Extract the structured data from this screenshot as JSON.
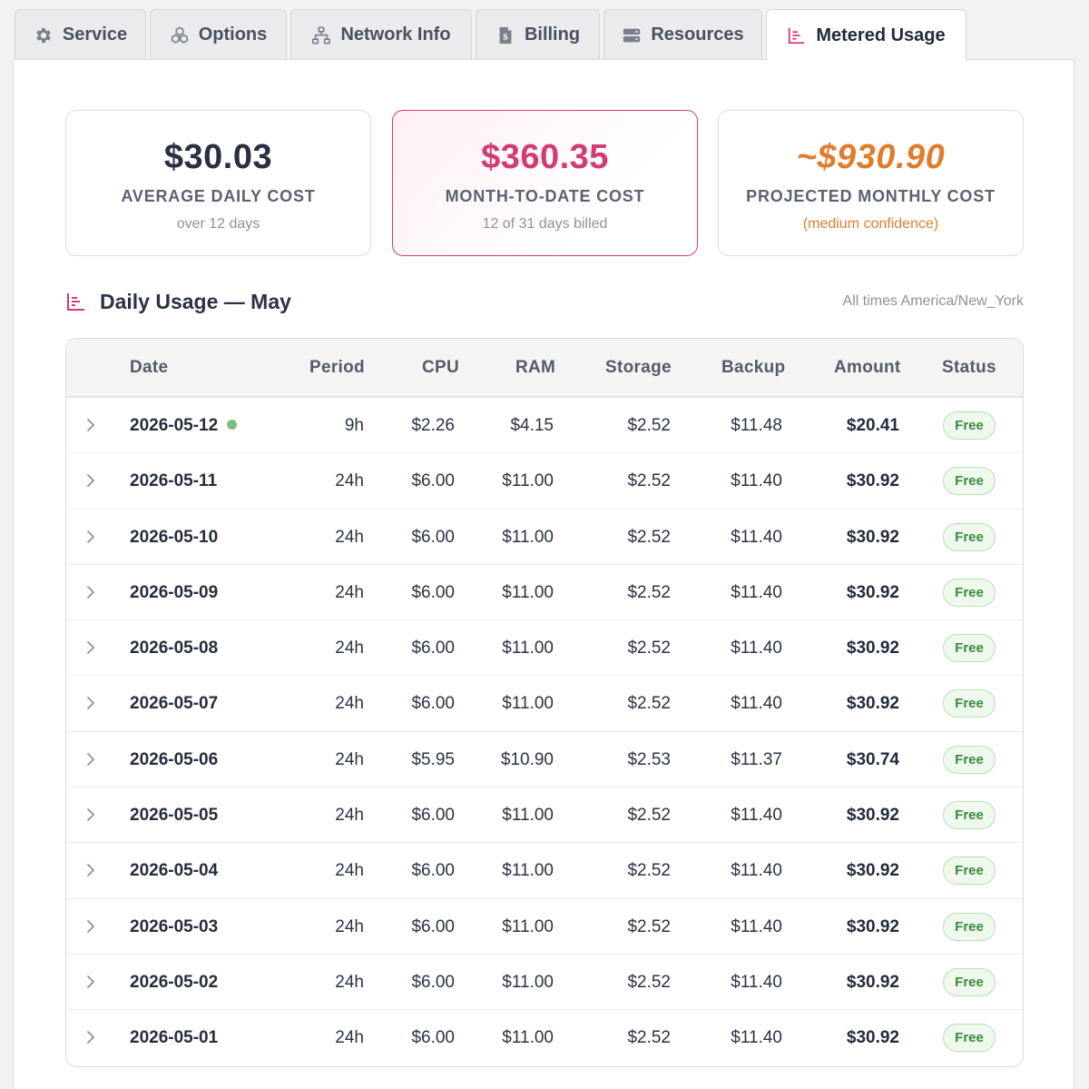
{
  "tabs": [
    {
      "label": "Service",
      "icon": "gear-icon",
      "active": false
    },
    {
      "label": "Options",
      "icon": "cubes-icon",
      "active": false
    },
    {
      "label": "Network Info",
      "icon": "network-icon",
      "active": false
    },
    {
      "label": "Billing",
      "icon": "invoice-icon",
      "active": false
    },
    {
      "label": "Resources",
      "icon": "server-icon",
      "active": false
    },
    {
      "label": "Metered Usage",
      "icon": "chart-bar-icon",
      "active": true
    }
  ],
  "summary": {
    "average": {
      "value": "$30.03",
      "label": "AVERAGE DAILY COST",
      "sub": "over 12 days"
    },
    "mtd": {
      "value": "$360.35",
      "label": "MONTH-TO-DATE COST",
      "sub": "12 of 31 days billed"
    },
    "projected": {
      "value": "~$930.90",
      "label": "PROJECTED MONTHLY COST",
      "sub_open": "(",
      "sub_conf": "medium confidence",
      "sub_close": ")"
    }
  },
  "section": {
    "title": "Daily Usage — May",
    "timezone": "All times America/New_York"
  },
  "table": {
    "headers": {
      "date": "Date",
      "period": "Period",
      "cpu": "CPU",
      "ram": "RAM",
      "storage": "Storage",
      "backup": "Backup",
      "amount": "Amount",
      "status": "Status"
    },
    "rows": [
      {
        "date": "2026-05-12",
        "live": true,
        "period": "9h",
        "cpu": "$2.26",
        "ram": "$4.15",
        "storage": "$2.52",
        "backup": "$11.48",
        "amount": "$20.41",
        "status": "Free"
      },
      {
        "date": "2026-05-11",
        "live": false,
        "period": "24h",
        "cpu": "$6.00",
        "ram": "$11.00",
        "storage": "$2.52",
        "backup": "$11.40",
        "amount": "$30.92",
        "status": "Free"
      },
      {
        "date": "2026-05-10",
        "live": false,
        "period": "24h",
        "cpu": "$6.00",
        "ram": "$11.00",
        "storage": "$2.52",
        "backup": "$11.40",
        "amount": "$30.92",
        "status": "Free"
      },
      {
        "date": "2026-05-09",
        "live": false,
        "period": "24h",
        "cpu": "$6.00",
        "ram": "$11.00",
        "storage": "$2.52",
        "backup": "$11.40",
        "amount": "$30.92",
        "status": "Free"
      },
      {
        "date": "2026-05-08",
        "live": false,
        "period": "24h",
        "cpu": "$6.00",
        "ram": "$11.00",
        "storage": "$2.52",
        "backup": "$11.40",
        "amount": "$30.92",
        "status": "Free"
      },
      {
        "date": "2026-05-07",
        "live": false,
        "period": "24h",
        "cpu": "$6.00",
        "ram": "$11.00",
        "storage": "$2.52",
        "backup": "$11.40",
        "amount": "$30.92",
        "status": "Free"
      },
      {
        "date": "2026-05-06",
        "live": false,
        "period": "24h",
        "cpu": "$5.95",
        "ram": "$10.90",
        "storage": "$2.53",
        "backup": "$11.37",
        "amount": "$30.74",
        "status": "Free"
      },
      {
        "date": "2026-05-05",
        "live": false,
        "period": "24h",
        "cpu": "$6.00",
        "ram": "$11.00",
        "storage": "$2.52",
        "backup": "$11.40",
        "amount": "$30.92",
        "status": "Free"
      },
      {
        "date": "2026-05-04",
        "live": false,
        "period": "24h",
        "cpu": "$6.00",
        "ram": "$11.00",
        "storage": "$2.52",
        "backup": "$11.40",
        "amount": "$30.92",
        "status": "Free"
      },
      {
        "date": "2026-05-03",
        "live": false,
        "period": "24h",
        "cpu": "$6.00",
        "ram": "$11.00",
        "storage": "$2.52",
        "backup": "$11.40",
        "amount": "$30.92",
        "status": "Free"
      },
      {
        "date": "2026-05-02",
        "live": false,
        "period": "24h",
        "cpu": "$6.00",
        "ram": "$11.00",
        "storage": "$2.52",
        "backup": "$11.40",
        "amount": "$30.92",
        "status": "Free"
      },
      {
        "date": "2026-05-01",
        "live": false,
        "period": "24h",
        "cpu": "$6.00",
        "ram": "$11.00",
        "storage": "$2.52",
        "backup": "$11.40",
        "amount": "$30.92",
        "status": "Free"
      }
    ]
  },
  "colors": {
    "accent": "#d23c74",
    "projected": "#e07d2c",
    "free_badge": "#3a8a3e",
    "live_dot": "#7bbd80"
  }
}
